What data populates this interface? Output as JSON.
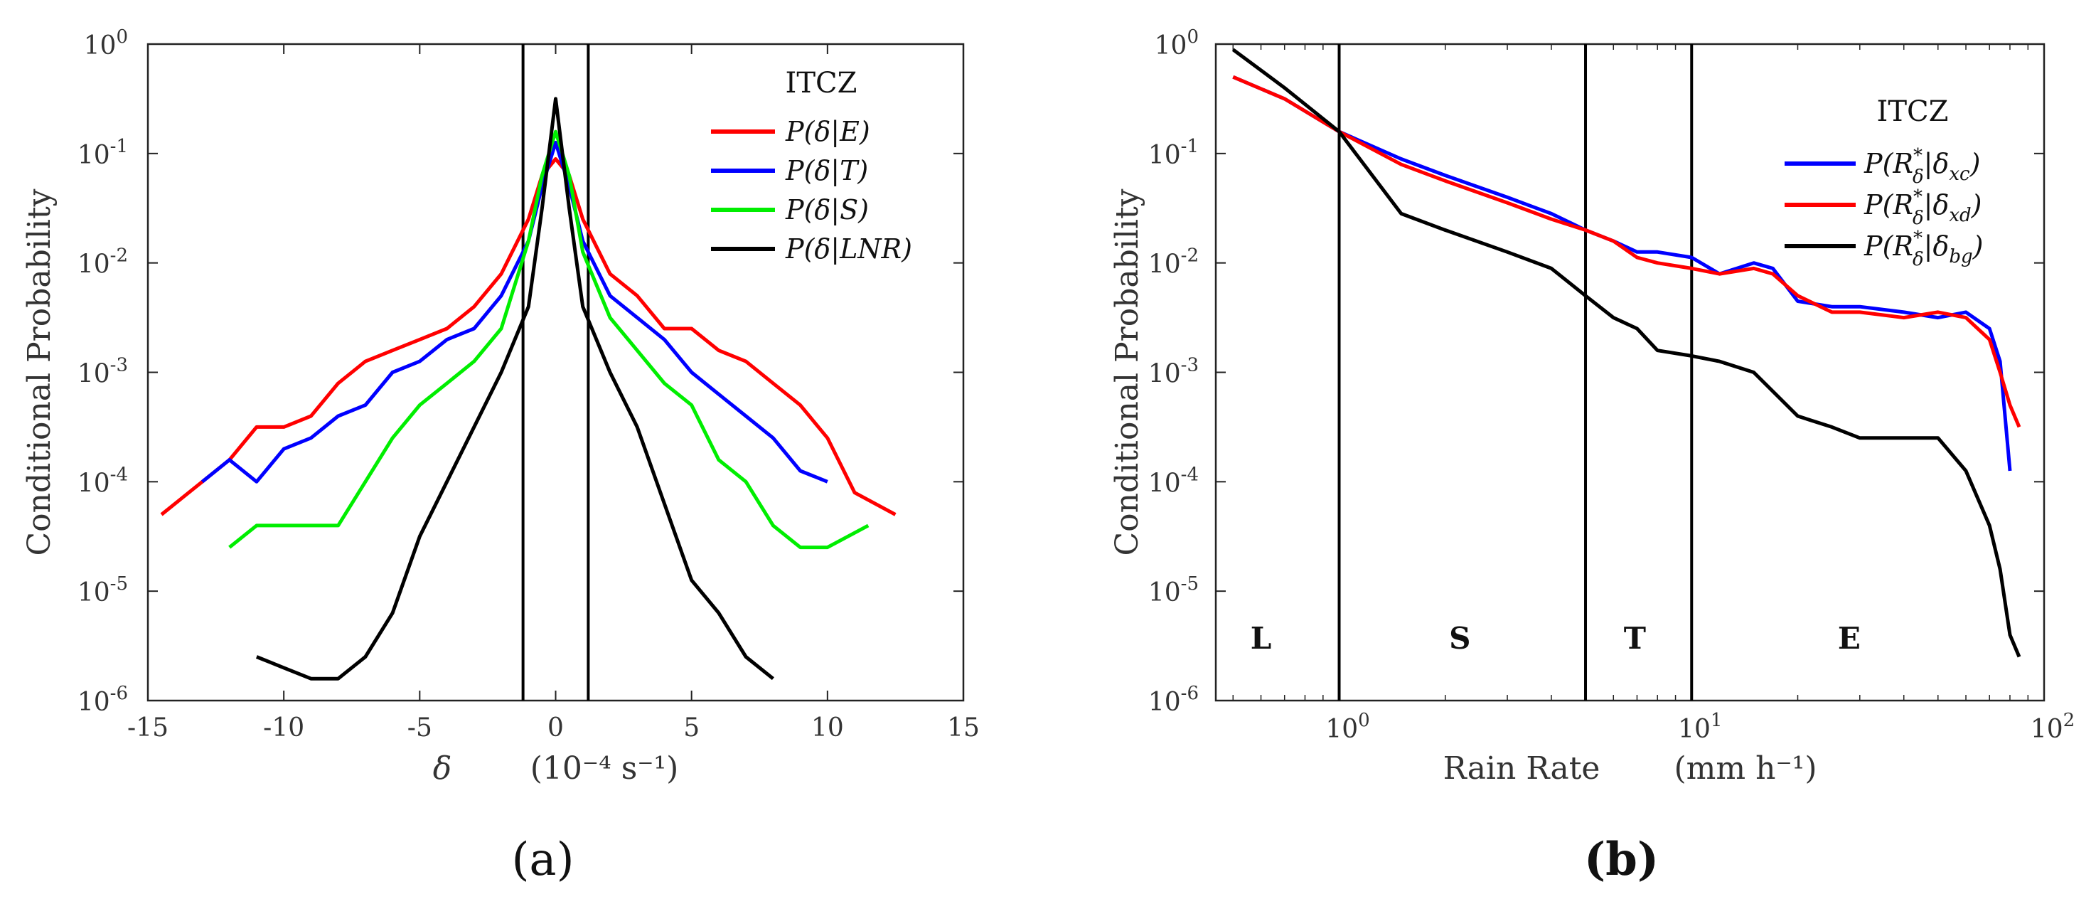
{
  "chart_data": [
    {
      "type": "line",
      "panel_label": "(a)",
      "title": "",
      "xlabel": "δ",
      "xunit": "(10⁻⁴ s⁻¹)",
      "ylabel": "Conditional Probability",
      "xlim": [
        -15,
        15
      ],
      "ylim_log10": [
        -6,
        0
      ],
      "yscale": "log",
      "xticks": [
        -15,
        -10,
        -5,
        0,
        5,
        10,
        15
      ],
      "xtick_labels": [
        "-15",
        "-10",
        "-5",
        "0",
        "5",
        "10",
        "15"
      ],
      "yticks_exp": [
        "0",
        "-1",
        "-2",
        "-3",
        "-4",
        "-5",
        "-6"
      ],
      "ytick_base": "10",
      "vlines": [
        -1.2,
        1.2
      ],
      "legend_title": "ITCZ",
      "legend_position": "top-right",
      "series": [
        {
          "name": "P(δ|E)",
          "color": "#ff0000",
          "x": [
            -14.5,
            -13,
            -12,
            -11,
            -10,
            -9,
            -8,
            -7,
            -6,
            -5,
            -4,
            -3,
            -2,
            -1,
            -0.5,
            0,
            0.5,
            1,
            2,
            3,
            4,
            5,
            6,
            7,
            8,
            9,
            10,
            11,
            12.5
          ],
          "logy": [
            -4.3,
            -4.0,
            -3.8,
            -3.5,
            -3.5,
            -3.4,
            -3.1,
            -2.9,
            -2.8,
            -2.7,
            -2.6,
            -2.4,
            -2.1,
            -1.6,
            -1.2,
            -1.05,
            -1.2,
            -1.6,
            -2.1,
            -2.3,
            -2.6,
            -2.6,
            -2.8,
            -2.9,
            -3.1,
            -3.3,
            -3.6,
            -4.1,
            -4.3
          ]
        },
        {
          "name": "P(δ|T)",
          "color": "#0000ff",
          "x": [
            -13,
            -12,
            -11,
            -10,
            -9,
            -8,
            -7,
            -6,
            -5,
            -4,
            -3,
            -2,
            -1,
            -0.5,
            0,
            0.5,
            1,
            2,
            3,
            4,
            5,
            6,
            7,
            8,
            9,
            10
          ],
          "logy": [
            -4.0,
            -3.8,
            -4.0,
            -3.7,
            -3.6,
            -3.4,
            -3.3,
            -3.0,
            -2.9,
            -2.7,
            -2.6,
            -2.3,
            -1.8,
            -1.3,
            -0.9,
            -1.3,
            -1.8,
            -2.3,
            -2.5,
            -2.7,
            -3.0,
            -3.2,
            -3.4,
            -3.6,
            -3.9,
            -4.0
          ]
        },
        {
          "name": "P(δ|S)",
          "color": "#00ee00",
          "x": [
            -12,
            -11,
            -10,
            -9,
            -8,
            -7,
            -6,
            -5,
            -4,
            -3,
            -2,
            -1,
            -0.5,
            0,
            0.5,
            1,
            2,
            3,
            4,
            5,
            6,
            7,
            8,
            9,
            10,
            11.5
          ],
          "logy": [
            -4.6,
            -4.4,
            -4.4,
            -4.4,
            -4.4,
            -4.0,
            -3.6,
            -3.3,
            -3.1,
            -2.9,
            -2.6,
            -1.8,
            -1.2,
            -0.8,
            -1.2,
            -1.9,
            -2.5,
            -2.8,
            -3.1,
            -3.3,
            -3.8,
            -4.0,
            -4.4,
            -4.6,
            -4.6,
            -4.4
          ]
        },
        {
          "name": "P(δ|LNR)",
          "color": "#000000",
          "x": [
            -11,
            -10,
            -9,
            -8,
            -7,
            -6,
            -5,
            -4,
            -3,
            -2,
            -1,
            -0.5,
            0,
            0.5,
            1,
            2,
            3,
            4,
            5,
            6,
            7,
            8
          ],
          "logy": [
            -5.6,
            -5.7,
            -5.8,
            -5.8,
            -5.6,
            -5.2,
            -4.5,
            -4.0,
            -3.5,
            -3.0,
            -2.4,
            -1.5,
            -0.5,
            -1.5,
            -2.4,
            -3.0,
            -3.5,
            -4.2,
            -4.9,
            -5.2,
            -5.6,
            -5.8
          ]
        }
      ]
    },
    {
      "type": "line",
      "panel_label": "(b)",
      "title": "",
      "xlabel": "Rain Rate",
      "xunit": "(mm h⁻¹)",
      "ylabel": "Conditional Probability",
      "xscale": "log",
      "yscale": "log",
      "xlim_log10": [
        -0.35,
        2
      ],
      "ylim_log10": [
        -6,
        0
      ],
      "xtick_exp": [
        "0",
        "1",
        "2"
      ],
      "xtick_pos_log10": [
        0,
        1,
        2
      ],
      "xtick_base": "10",
      "yticks_exp": [
        "0",
        "-1",
        "-2",
        "-3",
        "-4",
        "-5",
        "-6"
      ],
      "ytick_base": "10",
      "vlines": [
        1,
        5,
        10
      ],
      "regions": [
        {
          "label": "L",
          "x": 0.6
        },
        {
          "label": "S",
          "x": 2.2
        },
        {
          "label": "T",
          "x": 6.9
        },
        {
          "label": "E",
          "x": 28
        }
      ],
      "legend_title": "ITCZ",
      "legend_position": "top-right",
      "legend_labels": [
        {
          "main": "P(R",
          "sup": "*",
          "sub": "δ",
          "mid": "|δ",
          "sub2": "xc",
          "end": ")"
        },
        {
          "main": "P(R",
          "sup": "*",
          "sub": "δ",
          "mid": "|δ",
          "sub2": "xd",
          "end": ")"
        },
        {
          "main": "P(R",
          "sup": "*",
          "sub": "δ",
          "mid": "|δ",
          "sub2": "bg",
          "end": ")"
        }
      ],
      "series": [
        {
          "name": "P(R*δ|δxc)",
          "color": "#0000ff",
          "x": [
            0.5,
            0.7,
            1,
            1.5,
            2,
            3,
            4,
            5,
            6,
            7,
            8,
            10,
            12,
            15,
            17,
            20,
            25,
            30,
            40,
            50,
            60,
            70,
            75,
            80
          ],
          "logy": [
            -0.3,
            -0.5,
            -0.8,
            -1.05,
            -1.2,
            -1.4,
            -1.55,
            -1.7,
            -1.8,
            -1.9,
            -1.9,
            -1.95,
            -2.1,
            -2.0,
            -2.05,
            -2.35,
            -2.4,
            -2.4,
            -2.45,
            -2.5,
            -2.45,
            -2.6,
            -2.9,
            -3.9
          ]
        },
        {
          "name": "P(R*δ|δxd)",
          "color": "#ff0000",
          "x": [
            0.5,
            0.7,
            1,
            1.5,
            2,
            3,
            4,
            5,
            6,
            7,
            8,
            10,
            12,
            15,
            17,
            20,
            25,
            30,
            40,
            50,
            60,
            70,
            75,
            80,
            85
          ],
          "logy": [
            -0.3,
            -0.5,
            -0.8,
            -1.1,
            -1.25,
            -1.45,
            -1.6,
            -1.7,
            -1.8,
            -1.95,
            -2.0,
            -2.05,
            -2.1,
            -2.05,
            -2.1,
            -2.3,
            -2.45,
            -2.45,
            -2.5,
            -2.45,
            -2.5,
            -2.7,
            -3.0,
            -3.3,
            -3.5
          ]
        },
        {
          "name": "P(R*δ|δbg)",
          "color": "#000000",
          "x": [
            0.5,
            0.7,
            1,
            1.5,
            2,
            3,
            4,
            5,
            6,
            7,
            8,
            10,
            12,
            15,
            20,
            25,
            30,
            40,
            50,
            60,
            70,
            75,
            80,
            85
          ],
          "logy": [
            -0.05,
            -0.4,
            -0.8,
            -1.55,
            -1.7,
            -1.9,
            -2.05,
            -2.3,
            -2.5,
            -2.6,
            -2.8,
            -2.85,
            -2.9,
            -3.0,
            -3.4,
            -3.5,
            -3.6,
            -3.6,
            -3.6,
            -3.9,
            -4.4,
            -4.8,
            -5.4,
            -5.6
          ]
        }
      ]
    }
  ]
}
